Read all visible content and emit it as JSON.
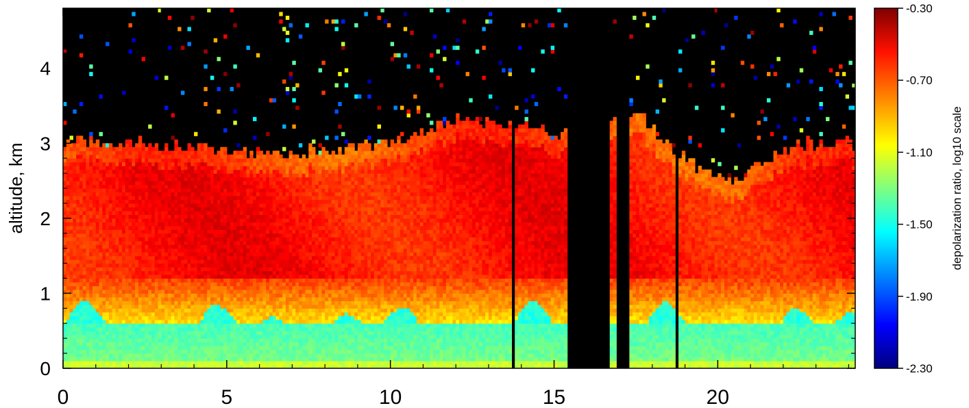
{
  "chart_data": {
    "type": "heatmap",
    "title": "",
    "xlabel": "",
    "ylabel": "altitude, km",
    "xlim": [
      0,
      24.2
    ],
    "ylim": [
      0,
      4.8
    ],
    "x_ticks": [
      0,
      5,
      10,
      15,
      20
    ],
    "x_tick_labels": [
      "0",
      "5",
      "10",
      "15",
      "20"
    ],
    "y_ticks": [
      0,
      1,
      2,
      3,
      4
    ],
    "y_tick_labels": [
      "0",
      "1",
      "2",
      "3",
      "4"
    ],
    "colorbar": {
      "label": "depolarization ratio, log10 scale",
      "range": [
        -2.3,
        -0.3
      ],
      "ticks": [
        -2.3,
        -1.9,
        -1.5,
        -1.1,
        -0.7,
        -0.3
      ],
      "tick_labels": [
        "-2.30",
        "-1.90",
        "-1.50",
        "-1.10",
        "-0.70",
        "-0.30"
      ],
      "scale": "log10"
    },
    "no_data_color": "#000000",
    "no_data_intervals": [
      [
        13.65,
        13.75
      ],
      [
        15.4,
        16.65
      ],
      [
        16.95,
        17.3
      ],
      [
        18.7,
        18.75
      ]
    ],
    "layers": [
      {
        "name_hint": "near-surface layer",
        "y_range": [
          0,
          0.6
        ],
        "value_approx": -1.35
      },
      {
        "name_hint": "patchy contoured layer",
        "y_range": [
          0.5,
          1.0
        ],
        "value_approx": -1.45
      },
      {
        "name_hint": "main elevated layer",
        "y_range": [
          0.8,
          3.0
        ],
        "value_approx": -0.62
      },
      {
        "name_hint": "sparse noise above layer",
        "y_range": [
          3.0,
          4.8
        ],
        "value_approx": "scattered"
      }
    ],
    "layer_top_km": [
      [
        0,
        3.0
      ],
      [
        2,
        3.0
      ],
      [
        4,
        2.95
      ],
      [
        6,
        2.85
      ],
      [
        8,
        2.9
      ],
      [
        10,
        3.0
      ],
      [
        11,
        3.15
      ],
      [
        12,
        3.3
      ],
      [
        13,
        3.3
      ],
      [
        14,
        3.25
      ],
      [
        15,
        3.1
      ],
      [
        17.5,
        3.4
      ],
      [
        18.5,
        3.0
      ],
      [
        19.5,
        2.6
      ],
      [
        20.5,
        2.5
      ],
      [
        21.5,
        2.8
      ],
      [
        22.5,
        3.0
      ],
      [
        23.5,
        3.0
      ],
      [
        24.2,
        3.0
      ]
    ],
    "colormap": [
      "#00007f",
      "#0000ff",
      "#007fff",
      "#00ffff",
      "#7fff7f",
      "#ffff00",
      "#ff7f00",
      "#ff0000",
      "#7f0000"
    ]
  }
}
